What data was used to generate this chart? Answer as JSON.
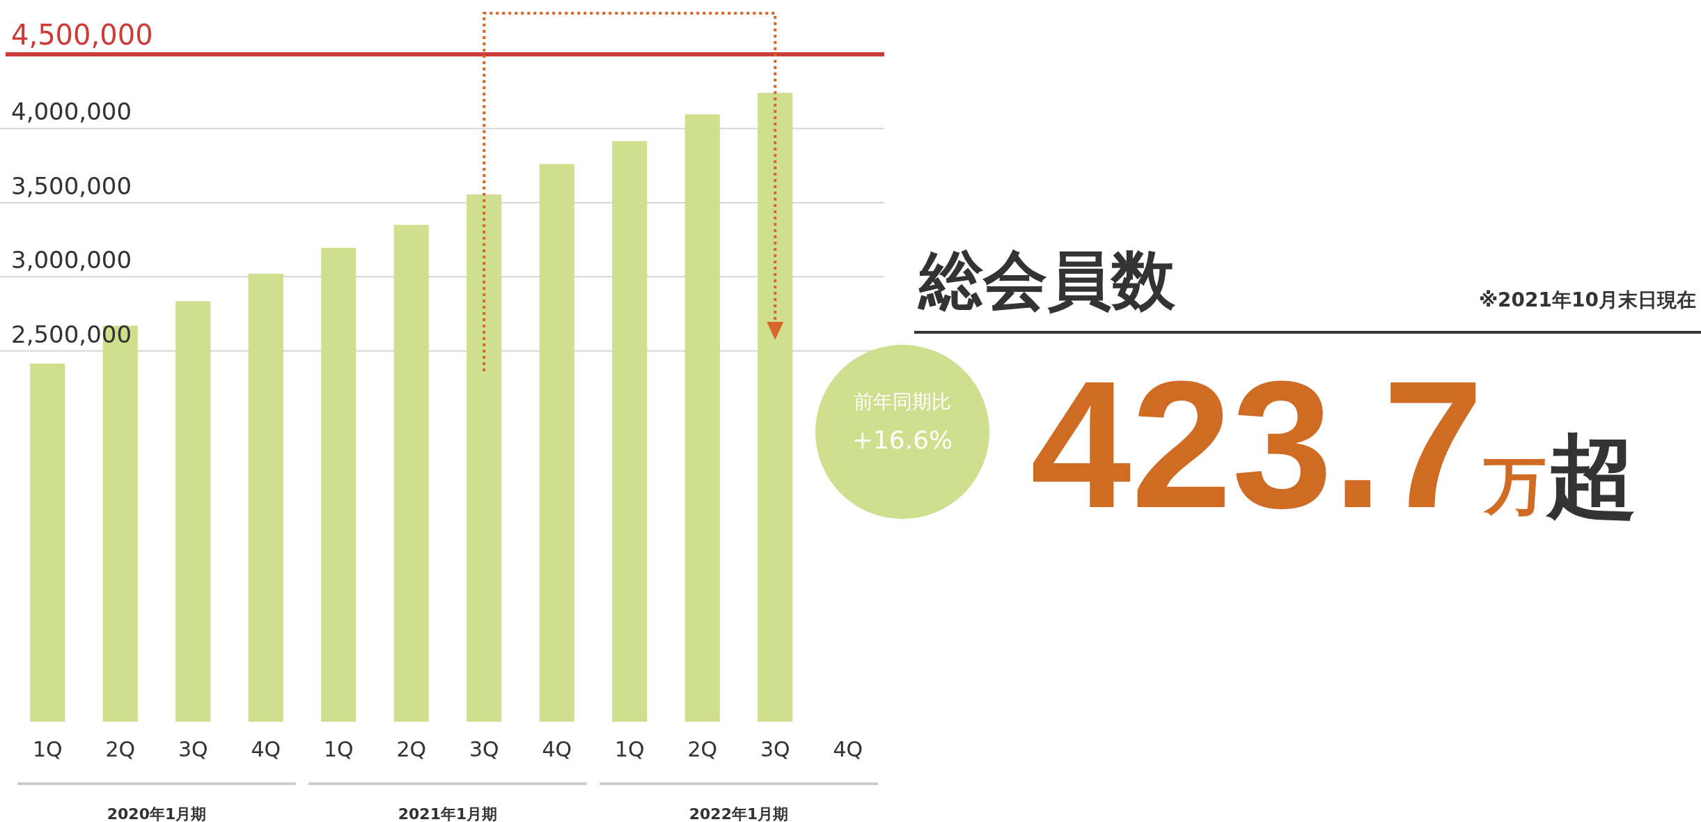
{
  "chart_data": [
    {
      "type": "bar",
      "categories": [
        "1Q",
        "2Q",
        "3Q",
        "4Q",
        "1Q",
        "2Q",
        "3Q",
        "4Q",
        "1Q",
        "2Q",
        "3Q",
        "4Q"
      ],
      "values": [
        2415000,
        2670000,
        2835000,
        3020000,
        3195000,
        3350000,
        3555000,
        3760000,
        3915000,
        4095000,
        4240000,
        null
      ],
      "color": "#cfdf8e",
      "ylim": [
        0,
        4500000
      ],
      "yticks": [
        {
          "value": 2500000,
          "label": "2,500,000"
        },
        {
          "value": 3000000,
          "label": "3,000,000"
        },
        {
          "value": 3500000,
          "label": "3,500,000"
        },
        {
          "value": 4000000,
          "label": "4,000,000"
        }
      ],
      "grid": true,
      "ref_lines": [
        {
          "axis": "y",
          "value": 4500000,
          "label": "4,500,000",
          "color": "#cc3b36"
        }
      ],
      "annotations": [
        "2020年1月期",
        "2021年1月期",
        "2022年1月期",
        "前年同期比",
        "+16.6%"
      ]
    },
    {
      "type": "other",
      "title": "総会員数",
      "subtitle": "※2021年10月末日現在",
      "annotations": [
        "423.7",
        "万",
        "超"
      ]
    }
  ]
}
